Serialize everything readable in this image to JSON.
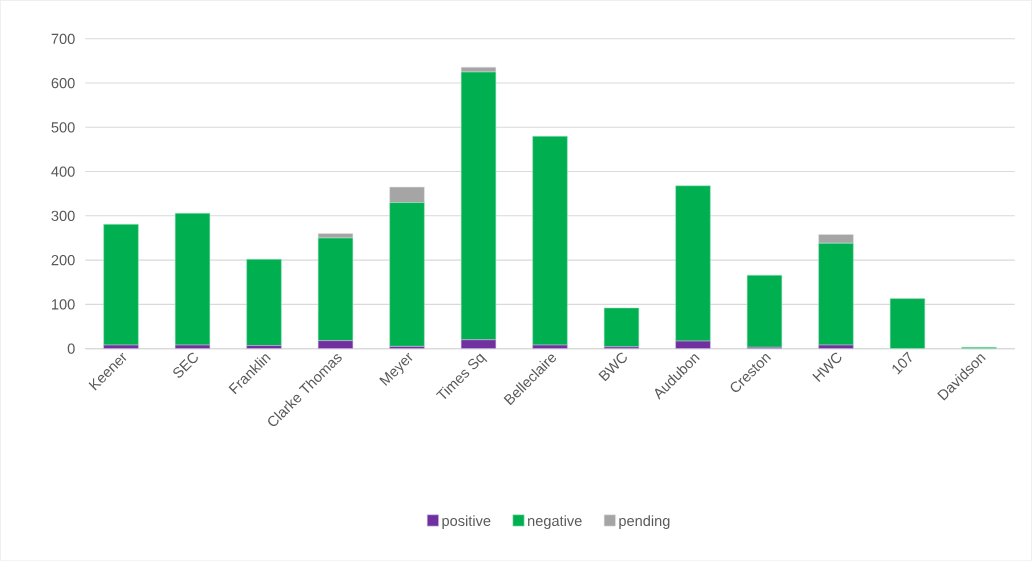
{
  "chart_data": {
    "type": "bar",
    "stacked": true,
    "categories": [
      "Keener",
      "SEC",
      "Franklin",
      "Clarke Thomas",
      "Meyer",
      "Times Sq",
      "Belleclaire",
      "BWC",
      "Audubon",
      "Creston",
      "HWC",
      "107",
      "Davidson"
    ],
    "series": [
      {
        "name": "positive",
        "color": "#7030a0",
        "values": [
          8,
          8,
          7,
          18,
          5,
          20,
          8,
          4,
          17,
          3,
          8,
          0,
          0
        ]
      },
      {
        "name": "negative",
        "color": "#00b050",
        "values": [
          273,
          298,
          195,
          232,
          325,
          605,
          472,
          88,
          351,
          163,
          230,
          113,
          3
        ]
      },
      {
        "name": "pending",
        "color": "#a5a5a5",
        "values": [
          0,
          0,
          0,
          10,
          35,
          11,
          0,
          0,
          0,
          0,
          20,
          0,
          0
        ]
      }
    ],
    "ylim": [
      0,
      700
    ],
    "yticks": [
      0,
      100,
      200,
      300,
      400,
      500,
      600,
      700
    ],
    "grid": "y",
    "legend": "bottom"
  }
}
